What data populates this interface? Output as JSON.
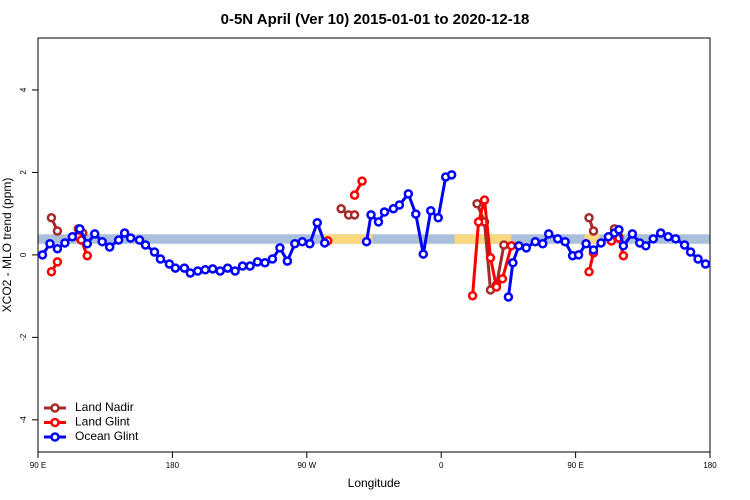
{
  "chart_data": {
    "type": "line",
    "title": "0-5N April (Ver 10)   2015-01-01 to 2020-12-18",
    "x_label": "Longitude",
    "y_label": "XCO2 - MLO trend (ppm)",
    "xlim": [
      90,
      540
    ],
    "ylim": [
      -4.78,
      5.26
    ],
    "xticks": [
      {
        "value": 90,
        "label": "90 E"
      },
      {
        "value": 180,
        "label": "180"
      },
      {
        "value": 270,
        "label": "90 W"
      },
      {
        "value": 360,
        "label": "0"
      },
      {
        "value": 450,
        "label": "90 E"
      },
      {
        "value": 540,
        "label": "180"
      }
    ],
    "yticks": [
      -4,
      -2,
      0,
      2,
      4
    ],
    "legend": "bottom-left",
    "band_ylim": [
      0.27,
      0.5
    ],
    "band_segments": [
      {
        "xlim": [
          90,
          540
        ],
        "color": "#a9bfdc"
      },
      {
        "xlim": [
          280,
          314
        ],
        "color": "#fbd77f"
      },
      {
        "xlim": [
          369,
          407
        ],
        "color": "#fbd77f"
      },
      {
        "xlim": [
          456,
          466
        ],
        "color": "#fbd77f"
      }
    ],
    "series": [
      {
        "name": "Land Nadir",
        "color": "#a52a2a",
        "x": [
          99,
          103,
          110,
          117,
          120,
          200,
          293,
          298,
          302,
          350,
          384,
          389,
          393,
          397,
          402,
          430,
          459,
          462,
          470,
          476,
          479
        ],
        "values": [
          0.9,
          0.58,
          null,
          0.63,
          0.53,
          null,
          1.12,
          0.97,
          0.97,
          null,
          1.24,
          0.8,
          -0.85,
          -0.73,
          0.24,
          null,
          0.9,
          0.58,
          null,
          0.63,
          0.44
        ]
      },
      {
        "name": "Land Glint",
        "color": "#ff0000",
        "x": [
          99,
          103,
          110,
          117,
          119,
          123,
          200,
          284,
          290,
          302,
          307,
          350,
          381,
          385,
          389,
          393,
          397,
          401,
          407,
          430,
          459,
          462,
          470,
          474,
          479,
          482
        ],
        "values": [
          -0.41,
          -0.17,
          null,
          0.44,
          0.36,
          -0.02,
          null,
          0.34,
          null,
          1.45,
          1.79,
          null,
          -0.99,
          0.8,
          1.33,
          -0.07,
          -0.78,
          -0.58,
          0.22,
          null,
          -0.41,
          0.05,
          null,
          0.34,
          0.41,
          -0.02
        ]
      },
      {
        "name": "Ocean Glint",
        "color": "#0000ff",
        "x": [
          93,
          98,
          103,
          108,
          113,
          118,
          123,
          128,
          133,
          138,
          144,
          148,
          152,
          158,
          162,
          168,
          172,
          178,
          182,
          188,
          192,
          197,
          202,
          207,
          212,
          217,
          222,
          227,
          232,
          237,
          242,
          247,
          252,
          257,
          262,
          267,
          272,
          277,
          282,
          296,
          310,
          313,
          318,
          322,
          328,
          332,
          338,
          343,
          348,
          353,
          358,
          363,
          367,
          386,
          405,
          408,
          412,
          417,
          423,
          428,
          432,
          438,
          443,
          448,
          452,
          457,
          462,
          467,
          472,
          476,
          479,
          482,
          488,
          493,
          497,
          502,
          507,
          512,
          517,
          523,
          527,
          532,
          537
        ],
        "values": [
          0,
          0.27,
          0.15,
          0.29,
          0.44,
          0.63,
          0.27,
          0.51,
          0.32,
          0.19,
          0.36,
          0.53,
          0.41,
          0.36,
          0.24,
          0.07,
          -0.1,
          -0.22,
          -0.32,
          -0.32,
          -0.44,
          -0.39,
          -0.36,
          -0.34,
          -0.39,
          -0.32,
          -0.39,
          -0.27,
          -0.27,
          -0.17,
          -0.19,
          -0.1,
          0.17,
          -0.15,
          0.27,
          0.32,
          0.27,
          0.78,
          0.29,
          null,
          0.32,
          0.97,
          0.8,
          1.04,
          1.12,
          1.21,
          1.48,
          0.99,
          0.02,
          1.07,
          0.9,
          1.89,
          1.94,
          null,
          -1.02,
          -0.19,
          0.22,
          0.17,
          0.32,
          0.27,
          0.51,
          0.39,
          0.32,
          -0.02,
          0,
          0.27,
          0.12,
          0.29,
          0.44,
          0.53,
          0.61,
          0.22,
          0.51,
          0.29,
          0.22,
          0.39,
          0.53,
          0.44,
          0.39,
          0.24,
          0.07,
          -0.1,
          -0.22
        ]
      }
    ]
  }
}
